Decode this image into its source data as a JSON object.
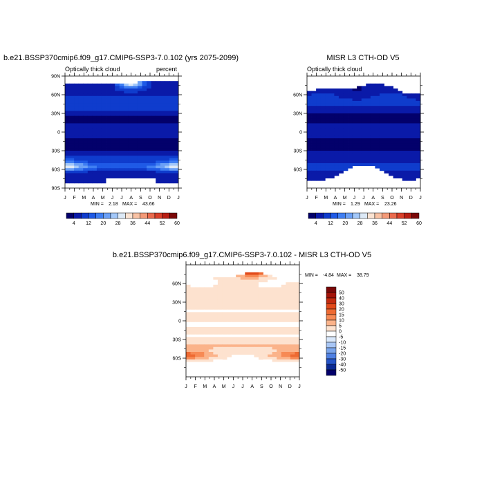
{
  "chart_data": [
    {
      "type": "heatmap",
      "title": "b.e21.BSSP370cmip6.f09_g17.CMIP6-SSP3-7.0.102 (yrs 2075-2099)",
      "subtitle_left": "Optically thick cloud",
      "subtitle_right": "percent",
      "x_ticks": [
        "J",
        "F",
        "M",
        "A",
        "M",
        "J",
        "J",
        "A",
        "S",
        "O",
        "N",
        "D",
        "J"
      ],
      "y_ticks": [
        "90N",
        "60N",
        "30N",
        "0",
        "30S",
        "60S",
        "90S"
      ],
      "ylim": [
        -90,
        90
      ],
      "min_label": "MIN =",
      "min": "2.18",
      "max_label": "MAX =",
      "max": "43.66",
      "colorbar_labels": [
        "4",
        "12",
        "20",
        "28",
        "36",
        "44",
        "52",
        "60"
      ]
    },
    {
      "type": "heatmap",
      "title": "MISR L3 CTH-OD V5",
      "subtitle_left": "Optically thick cloud",
      "x_ticks": [
        "J",
        "F",
        "M",
        "A",
        "M",
        "J",
        "J",
        "A",
        "S",
        "O",
        "N",
        "D",
        "J"
      ],
      "y_ticks": [
        "60N",
        "30N",
        "0",
        "30S",
        "60S"
      ],
      "ylim": [
        -90,
        90
      ],
      "min_label": "MIN =",
      "min": "1.29",
      "max_label": "MAX =",
      "max": "23.26",
      "colorbar_labels": [
        "4",
        "12",
        "20",
        "28",
        "36",
        "44",
        "52",
        "60"
      ]
    },
    {
      "type": "heatmap",
      "title": "b.e21.BSSP370cmip6.f09_g17.CMIP6-SSP3-7.0.102 - MISR L3 CTH-OD V5",
      "x_ticks": [
        "J",
        "F",
        "M",
        "A",
        "M",
        "J",
        "J",
        "A",
        "S",
        "O",
        "N",
        "D",
        "J"
      ],
      "y_ticks": [
        "60N",
        "30N",
        "0",
        "30S",
        "60S"
      ],
      "ylim": [
        -90,
        90
      ],
      "min_label": "MIN =",
      "min": "-4.84",
      "max_label": "MAX =",
      "max": "38.79",
      "colorbar_labels": [
        "50",
        "40",
        "30",
        "20",
        "15",
        "10",
        "5",
        "0",
        "-5",
        "-10",
        "-15",
        "-20",
        "-30",
        "-40",
        "-50"
      ]
    }
  ],
  "colors": {
    "absolute_scale": [
      "#03006b",
      "#0a1aa8",
      "#0f3ccd",
      "#1f5ae6",
      "#3f7ef2",
      "#6ba0f6",
      "#a3c8f9",
      "#dde9f6",
      "#fbe3d2",
      "#f9c2a4",
      "#f49a78",
      "#ea6a4d",
      "#d9402a",
      "#b81f14",
      "#7a0808"
    ],
    "diff_scale_top_to_bottom": [
      "#7a0808",
      "#a31308",
      "#c42b0f",
      "#e24a1a",
      "#ee6a32",
      "#f78a55",
      "#fbb38a",
      "#fde2cf",
      "#ffffff",
      "#d9e8fb",
      "#a8c6f5",
      "#7aa5ec",
      "#4f80e2",
      "#2554c7",
      "#0b2a93",
      "#03006b"
    ]
  }
}
